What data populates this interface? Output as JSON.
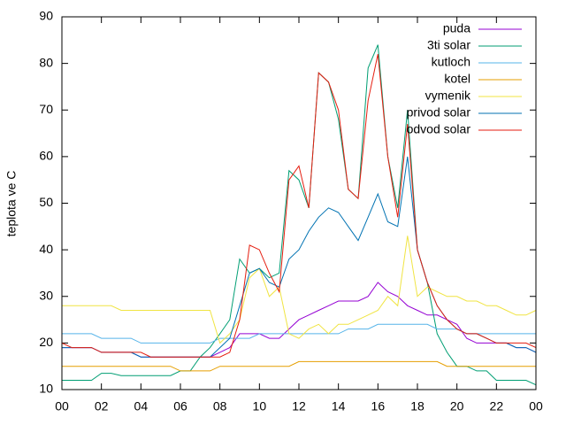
{
  "chart_data": {
    "type": "line",
    "ylabel": "teplota ve C",
    "x": [
      0,
      0.5,
      1,
      1.5,
      2,
      2.5,
      3,
      3.5,
      4,
      4.5,
      5,
      5.5,
      6,
      6.5,
      7,
      7.5,
      8,
      8.5,
      9,
      9.5,
      10,
      10.5,
      11,
      11.5,
      12,
      12.5,
      13,
      13.5,
      14,
      14.5,
      15,
      15.5,
      16,
      16.5,
      17,
      17.5,
      18,
      18.5,
      19,
      19.5,
      20,
      20.5,
      21,
      21.5,
      22,
      22.5,
      23,
      23.5,
      24
    ],
    "xlim": [
      0,
      24
    ],
    "xticks": [
      {
        "value": 0,
        "label": "00"
      },
      {
        "value": 2,
        "label": "02"
      },
      {
        "value": 4,
        "label": "04"
      },
      {
        "value": 6,
        "label": "06"
      },
      {
        "value": 8,
        "label": "08"
      },
      10,
      12,
      14,
      16,
      18,
      20,
      22,
      {
        "value": 24,
        "label": "00"
      }
    ],
    "ylim": [
      10,
      90
    ],
    "yticks": [
      10,
      20,
      30,
      40,
      50,
      60,
      70,
      80,
      90
    ],
    "legend": "top-right",
    "series": [
      {
        "name": "puda",
        "color": "#9400d3",
        "values": [
          19,
          19,
          19,
          19,
          18,
          18,
          18,
          18,
          17,
          17,
          17,
          17,
          17,
          17,
          17,
          17,
          18,
          19,
          22,
          22,
          22,
          21,
          21,
          23,
          25,
          26,
          27,
          28,
          29,
          29,
          29,
          30,
          33,
          31,
          30,
          28,
          27,
          26,
          26,
          25,
          24,
          21,
          20,
          20,
          20,
          20,
          19,
          19,
          18
        ]
      },
      {
        "name": "3ti solar",
        "color": "#009e73",
        "values": [
          12,
          12,
          12,
          12,
          13.5,
          13.5,
          13,
          13,
          13,
          13,
          13,
          13,
          14,
          14,
          17,
          19,
          22,
          25,
          38,
          35,
          36,
          34,
          35,
          57,
          55,
          49,
          78,
          76,
          68,
          53,
          51,
          79,
          84,
          60,
          49,
          70,
          40,
          33,
          22,
          18,
          15,
          15,
          14,
          14,
          12,
          12,
          12,
          12,
          11
        ]
      },
      {
        "name": "kutloch",
        "color": "#56b4e9",
        "values": [
          22,
          22,
          22,
          22,
          21,
          21,
          21,
          21,
          20,
          20,
          20,
          20,
          20,
          20,
          20,
          20,
          21,
          21,
          21,
          21,
          22,
          22,
          22,
          22,
          22,
          22,
          22,
          22,
          22,
          23,
          23,
          23,
          24,
          24,
          24,
          24,
          24,
          24,
          23,
          23,
          23,
          22,
          22,
          22,
          22,
          22,
          22,
          22,
          22
        ]
      },
      {
        "name": "kotel",
        "color": "#e69f00",
        "values": [
          15,
          15,
          15,
          15,
          15,
          15,
          15,
          15,
          15,
          15,
          15,
          15,
          14,
          14,
          14,
          14,
          15,
          15,
          15,
          15,
          15,
          15,
          15,
          15,
          16,
          16,
          16,
          16,
          16,
          16,
          16,
          16,
          16,
          16,
          16,
          16,
          16,
          16,
          16,
          15,
          15,
          15,
          15,
          15,
          15,
          15,
          15,
          15,
          15
        ]
      },
      {
        "name": "vymenik",
        "color": "#f0e442",
        "values": [
          28,
          28,
          28,
          28,
          28,
          28,
          27,
          27,
          27,
          27,
          27,
          27,
          27,
          27,
          27,
          27,
          20,
          22,
          25,
          34,
          36,
          30,
          32,
          22,
          21,
          23,
          24,
          22,
          24,
          24,
          25,
          26,
          27,
          30,
          28,
          43,
          30,
          32,
          31,
          30,
          30,
          29,
          29,
          28,
          28,
          27,
          26,
          26,
          27
        ]
      },
      {
        "name": "privod solar",
        "color": "#0072b2",
        "values": [
          19,
          19,
          19,
          19,
          18,
          18,
          18,
          18,
          17,
          17,
          17,
          17,
          17,
          17,
          17,
          17,
          19,
          21,
          28,
          35,
          36,
          33,
          32,
          38,
          40,
          44,
          47,
          49,
          48,
          45,
          42,
          47,
          52,
          46,
          45,
          60,
          40,
          33,
          28,
          25,
          23,
          22,
          22,
          21,
          20,
          20,
          19,
          19,
          18
        ]
      },
      {
        "name": "odvod solar",
        "color": "#e51e10",
        "values": [
          20,
          19,
          19,
          19,
          18,
          18,
          18,
          18,
          18,
          17,
          17,
          17,
          17,
          17,
          17,
          17,
          17,
          18,
          25,
          41,
          40,
          35,
          31,
          55,
          58,
          49,
          78,
          76,
          70,
          53,
          51,
          72,
          82,
          60,
          47,
          67,
          40,
          33,
          28,
          25,
          23,
          22,
          22,
          21,
          20,
          20,
          20,
          20,
          19
        ]
      }
    ]
  }
}
